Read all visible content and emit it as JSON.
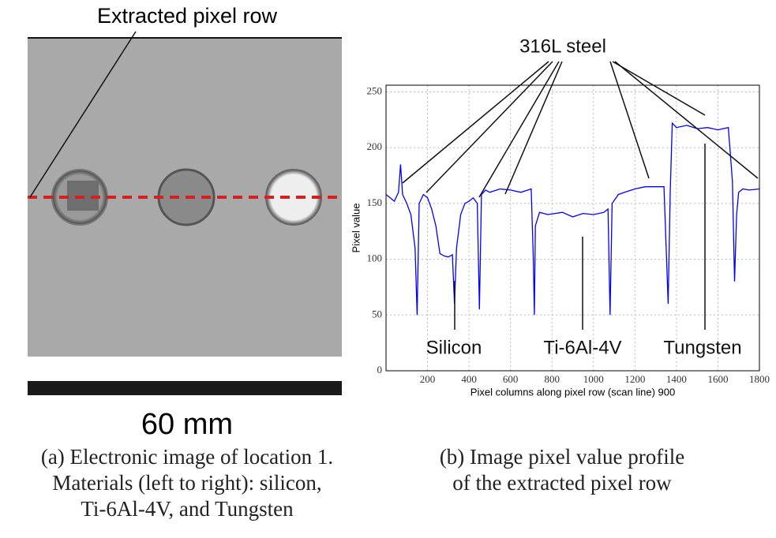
{
  "panel_a": {
    "row_label": "Extracted pixel row",
    "scale_label": "60 mm",
    "caption": [
      "(a) Electronic image of location 1.",
      "Materials (left to right): silicon,",
      "Ti-6Al-4V, and Tungsten"
    ]
  },
  "panel_b": {
    "caption": [
      "(b) Image pixel value profile",
      "of the extracted pixel row"
    ]
  },
  "chart_data": {
    "type": "line",
    "xlabel": "Pixel columns along pixel row (scan line) 900",
    "ylabel": "Pixel value",
    "annotations": [
      "316L steel",
      "Silicon",
      "Ti-6Al-4V",
      "Tungsten"
    ],
    "xlim": [
      0,
      1800
    ],
    "ylim": [
      0,
      256
    ],
    "xticks": [
      200,
      400,
      600,
      800,
      1000,
      1200,
      1400,
      1600,
      1800
    ],
    "yticks": [
      0,
      50,
      100,
      150,
      200,
      250
    ],
    "grid": true,
    "x": [
      0,
      20,
      40,
      60,
      70,
      80,
      100,
      120,
      140,
      150,
      160,
      180,
      200,
      220,
      240,
      260,
      280,
      300,
      320,
      330,
      340,
      360,
      380,
      400,
      420,
      440,
      450,
      460,
      480,
      500,
      550,
      600,
      650,
      700,
      710,
      715,
      720,
      740,
      780,
      850,
      900,
      950,
      1000,
      1050,
      1070,
      1080,
      1090,
      1120,
      1150,
      1200,
      1250,
      1300,
      1340,
      1360,
      1370,
      1380,
      1400,
      1450,
      1500,
      1550,
      1600,
      1650,
      1670,
      1680,
      1690,
      1700,
      1720,
      1750,
      1800
    ],
    "series": [
      {
        "color": "#0000ff",
        "values": [
          158,
          155,
          152,
          160,
          185,
          158,
          150,
          140,
          110,
          50,
          150,
          158,
          155,
          145,
          130,
          105,
          103,
          102,
          104,
          60,
          110,
          140,
          150,
          152,
          155,
          150,
          55,
          158,
          162,
          160,
          163,
          162,
          160,
          163,
          100,
          50,
          130,
          142,
          140,
          142,
          138,
          141,
          140,
          142,
          145,
          50,
          150,
          158,
          160,
          163,
          165,
          165,
          165,
          60,
          160,
          222,
          218,
          220,
          217,
          218,
          216,
          218,
          170,
          80,
          140,
          160,
          163,
          162,
          163
        ]
      }
    ]
  }
}
